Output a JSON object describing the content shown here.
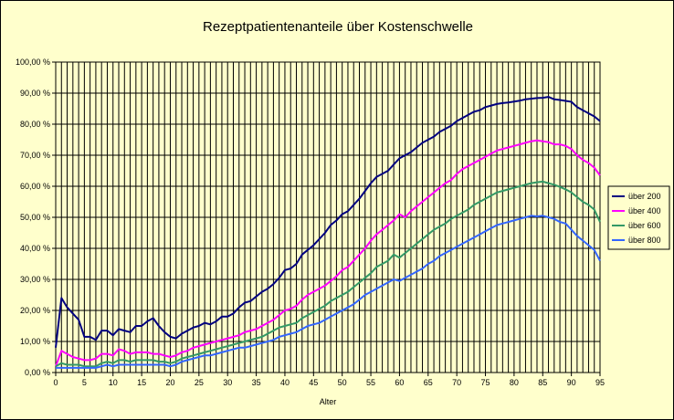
{
  "chart_data": {
    "type": "line",
    "title": "Rezeptpatientenanteile über Kostenschwelle",
    "xlabel": "Alter",
    "ylabel": "",
    "xlim": [
      0,
      95
    ],
    "ylim": [
      0,
      100
    ],
    "x_ticks": [
      0,
      5,
      10,
      15,
      20,
      25,
      30,
      35,
      40,
      45,
      50,
      55,
      60,
      65,
      70,
      75,
      80,
      85,
      90,
      95
    ],
    "y_ticks": [
      "0,00 %",
      "10,00 %",
      "20,00 %",
      "30,00 %",
      "40,00 %",
      "50,00 %",
      "60,00 %",
      "70,00 %",
      "80,00 %",
      "90,00 %",
      "100,00 %"
    ],
    "grid": true,
    "legend_position": "right",
    "x": [
      0,
      1,
      2,
      3,
      4,
      5,
      6,
      7,
      8,
      9,
      10,
      11,
      12,
      13,
      14,
      15,
      16,
      17,
      18,
      19,
      20,
      21,
      22,
      23,
      24,
      25,
      26,
      27,
      28,
      29,
      30,
      31,
      32,
      33,
      34,
      35,
      36,
      37,
      38,
      39,
      40,
      41,
      42,
      43,
      44,
      45,
      46,
      47,
      48,
      49,
      50,
      51,
      52,
      53,
      54,
      55,
      56,
      57,
      58,
      59,
      60,
      61,
      62,
      63,
      64,
      65,
      66,
      67,
      68,
      69,
      70,
      71,
      72,
      73,
      74,
      75,
      76,
      77,
      78,
      79,
      80,
      81,
      82,
      83,
      84,
      85,
      86,
      87,
      88,
      89,
      90,
      91,
      92,
      93,
      94,
      95
    ],
    "series": [
      {
        "name": "über 200",
        "color": "#000080",
        "values": [
          8,
          24,
          21,
          19,
          17,
          11.5,
          11.5,
          10.5,
          13.5,
          13.5,
          12,
          14,
          13.5,
          13,
          15,
          15,
          16.5,
          17.5,
          15,
          13,
          11.5,
          11,
          12.5,
          13.5,
          14.5,
          15,
          16,
          15.5,
          16.5,
          18,
          18,
          19,
          21,
          22.5,
          23,
          24.5,
          26,
          27,
          28.5,
          30.5,
          33,
          33.5,
          35,
          38,
          39.5,
          41,
          43,
          45,
          47.5,
          49,
          51,
          52,
          54,
          56,
          58.5,
          61,
          63,
          64,
          65,
          67,
          69,
          70,
          71,
          72.5,
          74,
          75,
          76,
          77.5,
          78.5,
          79.5,
          81,
          82,
          83,
          84,
          84.5,
          85.5,
          86,
          86.5,
          86.8,
          87,
          87.3,
          87.6,
          88,
          88.2,
          88.4,
          88.5,
          88.8,
          88,
          87.8,
          87.5,
          87.2,
          85.5,
          84.5,
          83.5,
          82.5,
          81
        ]
      },
      {
        "name": "über 400",
        "color": "#ff00ff",
        "values": [
          2,
          7,
          6,
          5,
          4.5,
          4,
          4,
          4.5,
          6,
          6,
          5.5,
          7.5,
          7,
          6,
          6.5,
          6.5,
          6.5,
          6,
          6,
          5.5,
          5,
          5.5,
          6.5,
          7,
          8,
          8.5,
          9,
          9.5,
          10,
          10.5,
          11,
          11.5,
          12,
          13,
          13.5,
          14,
          15,
          16,
          17,
          18.5,
          20,
          20.5,
          21.5,
          23.5,
          25,
          26,
          27,
          28,
          29.5,
          31,
          33,
          34,
          36,
          38,
          40,
          42.5,
          44.5,
          46,
          47.5,
          49,
          51,
          50,
          52,
          53.5,
          55,
          56.5,
          58,
          59.5,
          61,
          62,
          64,
          65.5,
          66.5,
          67.5,
          68.5,
          69.5,
          70.5,
          71.5,
          72,
          72.5,
          73,
          73.5,
          74,
          74.5,
          74.8,
          74.5,
          74.2,
          73.5,
          73.5,
          73,
          72,
          70,
          68.5,
          67.5,
          66,
          63.5
        ]
      },
      {
        "name": "über 600",
        "color": "#339966",
        "values": [
          2,
          3,
          2.5,
          2.5,
          2.5,
          2,
          2,
          2,
          3,
          3.5,
          3,
          4,
          4,
          3.5,
          4,
          4,
          4,
          4,
          3.5,
          3.5,
          3,
          3.5,
          4.5,
          5,
          5.5,
          6,
          6.5,
          7,
          7.5,
          8,
          8.5,
          9,
          9.5,
          10,
          10.5,
          11,
          11.5,
          12.5,
          13.5,
          14.5,
          15,
          15.5,
          16,
          17.5,
          18.5,
          19.5,
          20.5,
          21.5,
          23,
          24,
          25,
          26,
          27.5,
          29,
          30.5,
          32,
          34,
          35,
          36,
          38,
          37,
          38.5,
          40,
          41.5,
          43,
          44.5,
          46,
          47,
          48,
          49.5,
          50.5,
          51.5,
          52.5,
          54,
          55,
          56,
          57,
          58,
          58.5,
          59,
          59.5,
          60,
          60.5,
          61,
          61.3,
          61.5,
          61,
          60.5,
          59.8,
          59,
          58,
          56.5,
          55,
          54,
          52.5,
          48.5
        ]
      },
      {
        "name": "über 800",
        "color": "#3366ff",
        "values": [
          1.5,
          1.5,
          1.5,
          1.5,
          1.5,
          1.5,
          1.5,
          1.5,
          2,
          2.5,
          2,
          2.5,
          2.5,
          2.5,
          2.5,
          2.5,
          2.5,
          2.5,
          2.5,
          2.5,
          2,
          2.5,
          3.5,
          4,
          4.5,
          5,
          5.5,
          5.5,
          6,
          6.5,
          7,
          7.5,
          8,
          8,
          8.5,
          9,
          9.5,
          10,
          10.5,
          11.5,
          12,
          12.5,
          13,
          14,
          15,
          15.5,
          16,
          17,
          18,
          19,
          20,
          21,
          22,
          23.5,
          25,
          26,
          27,
          28,
          29,
          30,
          29.5,
          30.5,
          31.5,
          32.5,
          33.5,
          35,
          36,
          37.5,
          38.5,
          39.5,
          40.5,
          41.5,
          42.5,
          43.5,
          44.5,
          45.5,
          46.5,
          47.5,
          48,
          48.5,
          49,
          49.5,
          50,
          50.5,
          50.3,
          50.5,
          50,
          49.5,
          48.5,
          48,
          46,
          44,
          42.5,
          41,
          39.5,
          36
        ]
      }
    ]
  }
}
